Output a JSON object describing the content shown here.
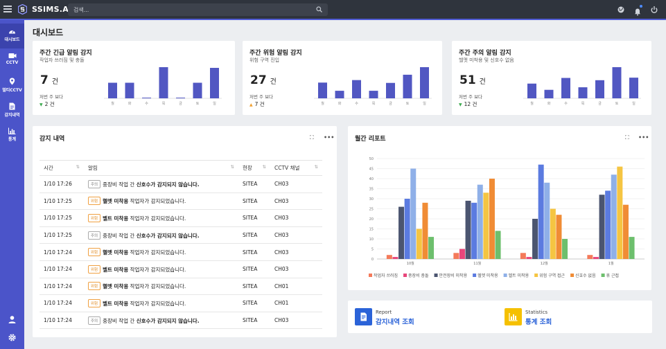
{
  "app": {
    "name": "SSIMS.AI"
  },
  "search": {
    "placeholder": "검색..."
  },
  "sidebar": {
    "items": [
      {
        "label": "대시보드",
        "icon": "dashboard-icon"
      },
      {
        "label": "CCTV",
        "icon": "camera-icon"
      },
      {
        "label": "멀티CCTV",
        "icon": "location-pin-icon"
      },
      {
        "label": "감지내역",
        "icon": "document-icon"
      },
      {
        "label": "통계",
        "icon": "bar-chart-icon"
      }
    ]
  },
  "page": {
    "title": "대시보드"
  },
  "kpis": [
    {
      "title": "주간 긴급 알림 감지",
      "subtitle": "작업자 쓰러짐 및 충돌",
      "value": "7",
      "unit": "건",
      "compare_label": "저번 주 보다",
      "delta": "2 건",
      "delta_direction": "down",
      "delta_color": "#3cab4f",
      "bars": [
        4.5,
        4.5,
        0.2,
        9,
        0.2,
        4.5,
        8.8
      ],
      "days": [
        "월",
        "화",
        "수",
        "목",
        "금",
        "토",
        "일"
      ]
    },
    {
      "title": "주간 위험 알림 감지",
      "subtitle": "위험 구역 진입",
      "value": "27",
      "unit": "건",
      "compare_label": "저번 주 보다",
      "delta": "7 건",
      "delta_direction": "up",
      "delta_color": "#f0a030",
      "bars": [
        5,
        2.4,
        5.8,
        2.4,
        4.9,
        7.5,
        9.9
      ],
      "days": [
        "월",
        "화",
        "수",
        "목",
        "금",
        "토",
        "일"
      ]
    },
    {
      "title": "주간 주의 알림 감지",
      "subtitle": "헬멧 미착용 및 신호수 없음",
      "value": "51",
      "unit": "건",
      "compare_label": "저번 주 보다",
      "delta": "12 건",
      "delta_direction": "down",
      "delta_color": "#3cab4f",
      "bars": [
        5.2,
        3,
        7.2,
        3.9,
        6.4,
        11,
        7.3
      ],
      "days": [
        "월",
        "화",
        "수",
        "목",
        "금",
        "토",
        "일"
      ]
    }
  ],
  "detection": {
    "title": "감지 내역",
    "columns": [
      "시간",
      "알림",
      "현장",
      "CCTV 채널"
    ],
    "rows": [
      {
        "time": "1/10 17:26",
        "tag": "주의",
        "tag_type": "note",
        "pre": "중장비 작업 간 ",
        "bold": "신호수가 감지되지 않습니다.",
        "post": "",
        "site": "SITEA",
        "channel": "CH03"
      },
      {
        "time": "1/10 17:25",
        "tag": "위험",
        "tag_type": "warn",
        "pre": "",
        "bold": "헬멧 미착용",
        "post": " 작업자가 감지되었습니다.",
        "site": "SITEA",
        "channel": "CH03"
      },
      {
        "time": "1/10 17:25",
        "tag": "위험",
        "tag_type": "warn",
        "pre": "",
        "bold": "벨트 미착용",
        "post": " 작업자가 감지되었습니다.",
        "site": "SITEA",
        "channel": "CH03"
      },
      {
        "time": "1/10 17:25",
        "tag": "주의",
        "tag_type": "note",
        "pre": "중장비 작업 간 ",
        "bold": "신호수가 감지되지 않습니다.",
        "post": "",
        "site": "SITEA",
        "channel": "CH03"
      },
      {
        "time": "1/10 17:24",
        "tag": "위험",
        "tag_type": "warn",
        "pre": "",
        "bold": "헬멧 미착용",
        "post": " 작업자가 감지되었습니다.",
        "site": "SITEA",
        "channel": "CH03"
      },
      {
        "time": "1/10 17:24",
        "tag": "위험",
        "tag_type": "warn",
        "pre": "",
        "bold": "벨트 미착용",
        "post": " 작업자가 감지되었습니다.",
        "site": "SITEA",
        "channel": "CH03"
      },
      {
        "time": "1/10 17:24",
        "tag": "위험",
        "tag_type": "warn",
        "pre": "",
        "bold": "헬멧 미착용",
        "post": " 작업자가 감지되었습니다.",
        "site": "SITEA",
        "channel": "CH01"
      },
      {
        "time": "1/10 17:24",
        "tag": "위험",
        "tag_type": "warn",
        "pre": "",
        "bold": "벨트 미착용",
        "post": " 작업자가 감지되었습니다.",
        "site": "SITEA",
        "channel": "CH01"
      },
      {
        "time": "1/10 17:24",
        "tag": "주의",
        "tag_type": "note",
        "pre": "중장비 작업 간 ",
        "bold": "신호수가 감지되지 않습니다.",
        "post": "",
        "site": "SITEA",
        "channel": "CH03"
      }
    ]
  },
  "monthly": {
    "title": "월간 리포트"
  },
  "chart_data": {
    "type": "bar",
    "categories": [
      "10월",
      "11월",
      "12월",
      "1월"
    ],
    "ylim": [
      0,
      50
    ],
    "yticks": [
      0,
      5,
      10,
      15,
      20,
      25,
      30,
      35,
      40,
      45,
      50
    ],
    "series": [
      {
        "name": "작업자 쓰러짐",
        "color": "#f47a5a",
        "values": [
          2,
          3,
          3,
          2
        ]
      },
      {
        "name": "중장비 충돌",
        "color": "#e8467b",
        "values": [
          1,
          5,
          1,
          1
        ]
      },
      {
        "name": "안전장비 미착용",
        "color": "#4b5570",
        "values": [
          26,
          29,
          20,
          32
        ]
      },
      {
        "name": "헬멧 미착용",
        "color": "#5b7be0",
        "values": [
          30,
          28,
          47,
          34
        ]
      },
      {
        "name": "벨트 미착용",
        "color": "#8fb0e8",
        "values": [
          45,
          37,
          38,
          42
        ]
      },
      {
        "name": "위험 구역 접근",
        "color": "#f5c542",
        "values": [
          15,
          33,
          25,
          46
        ]
      },
      {
        "name": "신호수 없음",
        "color": "#f08c35",
        "values": [
          28,
          40,
          22,
          27
        ]
      },
      {
        "name": "휴 근접",
        "color": "#6dbf6d",
        "values": [
          11,
          14,
          10,
          11
        ]
      }
    ]
  },
  "quick": [
    {
      "kicker": "Report",
      "label": "감지내역 조회",
      "color": "#2b63d8",
      "icon": "report-icon"
    },
    {
      "kicker": "Statistics",
      "label": "통계 조회",
      "color": "#f5c000",
      "icon": "statistics-icon"
    }
  ]
}
